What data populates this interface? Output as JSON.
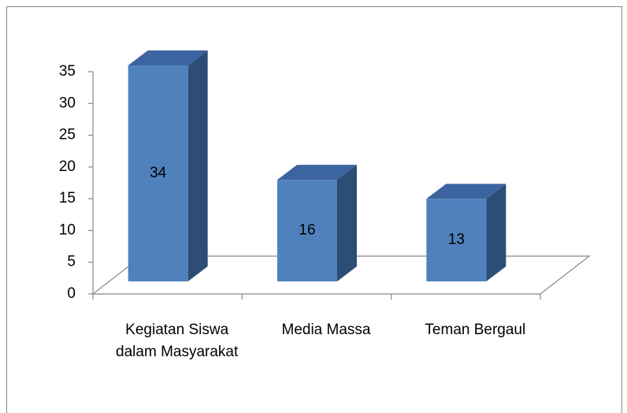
{
  "chart_data": {
    "type": "bar3d",
    "categories": [
      "Kegiatan Siswa dalam Masyarakat",
      "Media Massa",
      "Teman Bergaul"
    ],
    "values": [
      34,
      16,
      13
    ],
    "color": "#4f81bd",
    "ylim": [
      0,
      35
    ],
    "yticks": [
      0,
      5,
      10,
      15,
      20,
      25,
      30,
      35
    ]
  }
}
